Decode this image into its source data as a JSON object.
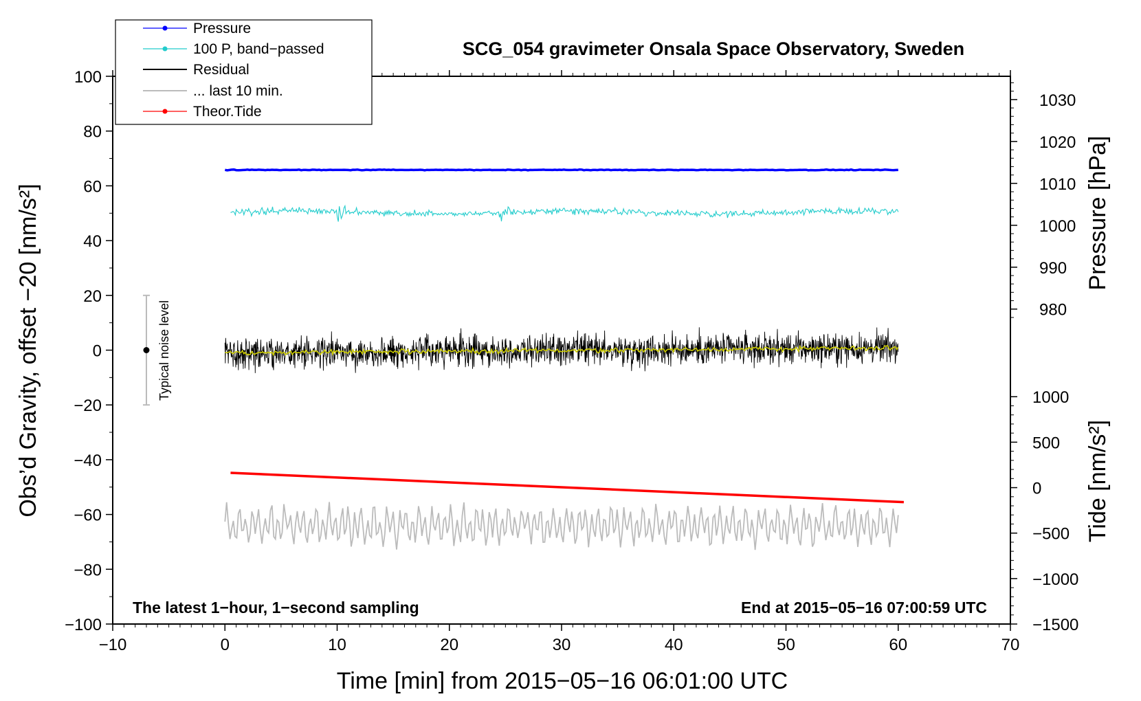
{
  "chart_data": {
    "type": "line",
    "title": "SCG_054 gravimeter Onsala Space Observatory, Sweden",
    "xlabel": "Time [min] from 2015−05−16 06:01:00 UTC",
    "ylabel_left": "Obs’d Gravity, offset −20 [nm/s²]",
    "ylabel_pressure": "Pressure [hPa]",
    "ylabel_tide": "Tide [nm/s²]",
    "xlim": [
      -10,
      70
    ],
    "ylim": [
      -100,
      100
    ],
    "x_ticks": [
      -10,
      0,
      10,
      20,
      30,
      40,
      50,
      60,
      70
    ],
    "x_tick_labels": [
      "−10",
      "0",
      "10",
      "20",
      "30",
      "40",
      "50",
      "60",
      "70"
    ],
    "y_ticks": [
      100,
      80,
      60,
      40,
      20,
      0,
      -20,
      -40,
      -60,
      -80,
      -100
    ],
    "y_tick_labels": [
      "100",
      "80",
      "60",
      "40",
      "20",
      "0",
      "−20",
      "−40",
      "−60",
      "−80",
      "−100"
    ],
    "pressure_axis": {
      "ticks": [
        1030,
        1020,
        1010,
        1000,
        990,
        980
      ],
      "tick_labels": [
        "1030",
        "1020",
        "1010",
        "1000",
        "990",
        "980"
      ],
      "gravity_at_1030": 91.5,
      "gravity_per_hpa": 1.53
    },
    "tide_axis": {
      "ticks": [
        1000,
        500,
        0,
        -500,
        -1000,
        -1500
      ],
      "tick_labels": [
        "1000",
        "500",
        "0",
        "−500",
        "−1000",
        "−1500"
      ],
      "gravity_at_1000": -17,
      "gravity_per_unit": 0.0332
    },
    "legend": [
      {
        "label": "Pressure",
        "color": "#0000ff",
        "marker": true
      },
      {
        "label": "100 P, band−passed",
        "color": "#22cccc",
        "marker": true
      },
      {
        "label": "Residual",
        "color": "#000000",
        "marker": false
      },
      {
        "label": "... last 10 min.",
        "color": "#bbbbbb",
        "marker": false
      },
      {
        "label": "Theor.Tide",
        "color": "#ff0000",
        "marker": true
      }
    ],
    "series": [
      {
        "name": "Pressure",
        "color": "#0000ff",
        "x_range": [
          0,
          60
        ],
        "level": 65.8,
        "amplitude": 0.2
      },
      {
        "name": "100 P, band−passed",
        "color": "#22cccc",
        "x_range": [
          0.5,
          60
        ],
        "level": 50.3,
        "amplitude": 1.6
      },
      {
        "name": "Residual",
        "color": "#000000",
        "x_range": [
          0,
          60
        ],
        "level": -1,
        "amplitude": 5.5
      },
      {
        "name": "Residual smoothed",
        "color": "#cccc00",
        "x_range": [
          0,
          60
        ],
        "level": -1,
        "amplitude": 0.8
      },
      {
        "name": "Theor.Tide",
        "color": "#ff0000",
        "x_range": [
          0.5,
          60.5
        ],
        "start": -44.8,
        "end": -55.5
      },
      {
        "name": "... last 10 min.",
        "color": "#bbbbbb",
        "x_range": [
          0,
          60
        ],
        "level": -64,
        "amplitude": 6
      }
    ],
    "noise_bar": {
      "label": "Typical noise level",
      "x": -7,
      "center": 0,
      "half_range": 20
    },
    "annotation_left": "The latest 1−hour, 1−second sampling",
    "annotation_right": "End at 2015−05−16 07:00:59 UTC"
  }
}
